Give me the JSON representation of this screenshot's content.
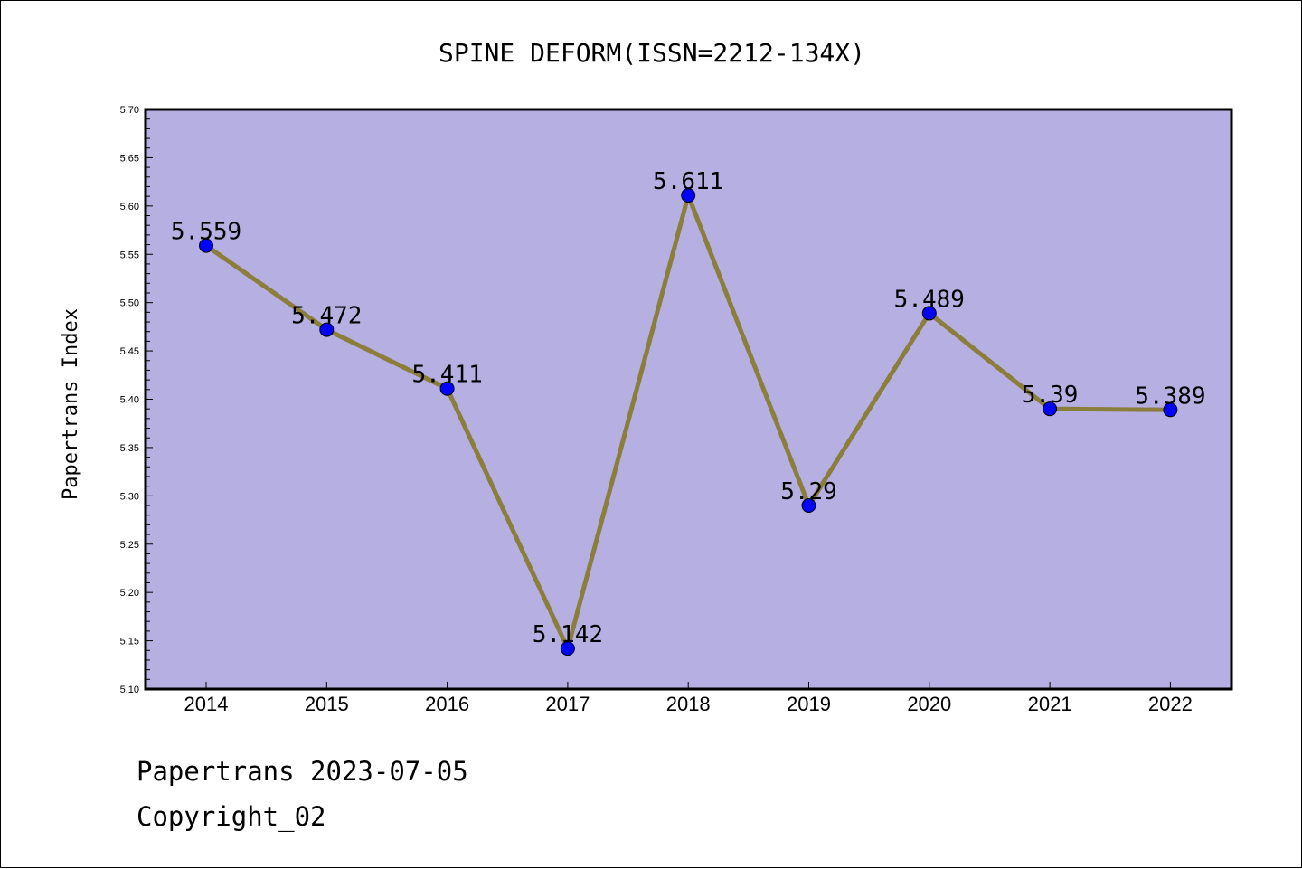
{
  "chart_data": {
    "type": "line",
    "title": "SPINE DEFORM(ISSN=2212-134X)",
    "xlabel": "",
    "ylabel": "Papertrans Index",
    "categories": [
      "2014",
      "2015",
      "2016",
      "2017",
      "2018",
      "2019",
      "2020",
      "2021",
      "2022"
    ],
    "series": [
      {
        "values": [
          5.559,
          5.472,
          5.411,
          5.142,
          5.611,
          5.29,
          5.489,
          5.39,
          5.389
        ],
        "labels": [
          "5.559",
          "5.472",
          "5.411",
          "5.142",
          "5.611",
          "5.29",
          "5.489",
          "5.39",
          "5.389"
        ]
      }
    ],
    "ylim": [
      5.1,
      5.7
    ],
    "yticks": [
      "5.10",
      "5.15",
      "5.20",
      "5.25",
      "5.30",
      "5.35",
      "5.40",
      "5.45",
      "5.50",
      "5.55",
      "5.60",
      "5.65",
      "5.70"
    ],
    "grid": false,
    "legend": "none",
    "colors": {
      "plot_background": "#b5afe2",
      "line": "#8b7d3a",
      "marker": "#0000ff"
    }
  },
  "footer": {
    "date_line": "Papertrans 2023-07-05",
    "copyright": "Copyright_02"
  }
}
